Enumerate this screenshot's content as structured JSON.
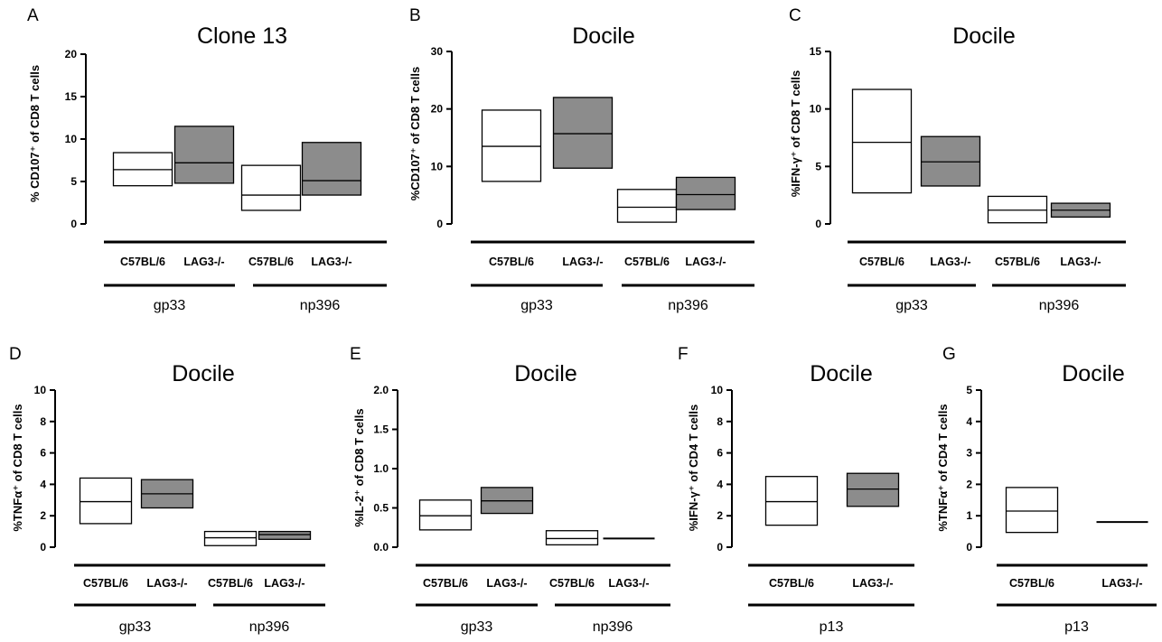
{
  "figure": {
    "colors": {
      "fill_white": "#ffffff",
      "fill_grey": "#8c8c8c",
      "stroke": "#000000"
    }
  },
  "chart_data": [
    {
      "type": "box",
      "panel": "A",
      "title": "Clone 13",
      "ylabel": "% CD107⁺ of CD8 T cells",
      "ylim": [
        0,
        20
      ],
      "yticks": [
        "0",
        "5",
        "10",
        "15",
        "20"
      ],
      "categories": [
        "C57BL/6",
        "LAG3-/-",
        "C57BL/6",
        "LAG3-/-"
      ],
      "groups": [
        {
          "label": "gp33",
          "members": [
            0,
            1
          ]
        },
        {
          "label": "np396",
          "members": [
            2,
            3
          ]
        }
      ],
      "boxes": [
        {
          "low": 4.5,
          "mid": 6.4,
          "high": 8.4,
          "fill": "white"
        },
        {
          "low": 4.8,
          "mid": 7.2,
          "high": 11.5,
          "fill": "grey"
        },
        {
          "low": 1.6,
          "mid": 3.4,
          "high": 6.9,
          "fill": "white"
        },
        {
          "low": 3.4,
          "mid": 5.1,
          "high": 9.6,
          "fill": "grey"
        }
      ]
    },
    {
      "type": "box",
      "panel": "B",
      "title": "Docile",
      "ylabel": "%CD107⁺ of CD8 T cells",
      "ylim": [
        0,
        30
      ],
      "yticks": [
        "0",
        "10",
        "20",
        "30"
      ],
      "categories": [
        "C57BL/6",
        "LAG3-/-",
        "C57BL/6",
        "LAG3-/-"
      ],
      "groups": [
        {
          "label": "gp33",
          "members": [
            0,
            1
          ]
        },
        {
          "label": "np396",
          "members": [
            2,
            3
          ]
        }
      ],
      "boxes": [
        {
          "low": 7.4,
          "mid": 13.5,
          "high": 19.8,
          "fill": "white"
        },
        {
          "low": 9.7,
          "mid": 15.7,
          "high": 22.0,
          "fill": "grey"
        },
        {
          "low": 0.3,
          "mid": 2.9,
          "high": 6.0,
          "fill": "white"
        },
        {
          "low": 2.5,
          "mid": 5.1,
          "high": 8.1,
          "fill": "grey"
        }
      ]
    },
    {
      "type": "box",
      "panel": "C",
      "title": "Docile",
      "ylabel": "%IFN-γ⁺ of CD8 T cells",
      "ylim": [
        0,
        15
      ],
      "yticks": [
        "0",
        "5",
        "10",
        "15"
      ],
      "categories": [
        "C57BL/6",
        "LAG3-/-",
        "C57BL/6",
        "LAG3-/-"
      ],
      "groups": [
        {
          "label": "gp33",
          "members": [
            0,
            1
          ]
        },
        {
          "label": "np396",
          "members": [
            2,
            3
          ]
        }
      ],
      "boxes": [
        {
          "low": 2.7,
          "mid": 7.1,
          "high": 11.7,
          "fill": "white"
        },
        {
          "low": 3.3,
          "mid": 5.4,
          "high": 7.6,
          "fill": "grey"
        },
        {
          "low": 0.1,
          "mid": 1.2,
          "high": 2.4,
          "fill": "white"
        },
        {
          "low": 0.6,
          "mid": 1.2,
          "high": 1.8,
          "fill": "grey"
        }
      ]
    },
    {
      "type": "box",
      "panel": "D",
      "title": "Docile",
      "ylabel": "%TNFα⁺ of CD8 T cells",
      "ylim": [
        0,
        10
      ],
      "yticks": [
        "0",
        "2",
        "4",
        "6",
        "8",
        "10"
      ],
      "categories": [
        "C57BL/6",
        "LAG3-/-",
        "C57BL/6",
        "LAG3-/-"
      ],
      "groups": [
        {
          "label": "gp33",
          "members": [
            0,
            1
          ]
        },
        {
          "label": "np396",
          "members": [
            2,
            3
          ]
        }
      ],
      "boxes": [
        {
          "low": 1.5,
          "mid": 2.9,
          "high": 4.4,
          "fill": "white"
        },
        {
          "low": 2.5,
          "mid": 3.4,
          "high": 4.3,
          "fill": "grey"
        },
        {
          "low": 0.1,
          "mid": 0.6,
          "high": 1.0,
          "fill": "white"
        },
        {
          "low": 0.5,
          "mid": 0.8,
          "high": 1.0,
          "fill": "grey"
        }
      ]
    },
    {
      "type": "box",
      "panel": "E",
      "title": "Docile",
      "ylabel": "%IL-2⁺ of CD8 T cells",
      "ylim": [
        0,
        2.0
      ],
      "yticks": [
        "0.0",
        "0.5",
        "1.0",
        "1.5",
        "2.0"
      ],
      "categories": [
        "C57BL/6",
        "LAG3-/-",
        "C57BL/6",
        "LAG3-/-"
      ],
      "groups": [
        {
          "label": "gp33",
          "members": [
            0,
            1
          ]
        },
        {
          "label": "np396",
          "members": [
            2,
            3
          ]
        }
      ],
      "boxes": [
        {
          "low": 0.22,
          "mid": 0.4,
          "high": 0.6,
          "fill": "white"
        },
        {
          "low": 0.43,
          "mid": 0.59,
          "high": 0.76,
          "fill": "grey"
        },
        {
          "low": 0.03,
          "mid": 0.11,
          "high": 0.21,
          "fill": "white"
        },
        {
          "low": 0.11,
          "mid": 0.11,
          "high": 0.11,
          "fill": "grey"
        }
      ]
    },
    {
      "type": "box",
      "panel": "F",
      "title": "Docile",
      "ylabel": "%IFN-γ⁺ of CD4 T cells",
      "ylim": [
        0,
        10
      ],
      "yticks": [
        "0",
        "2",
        "4",
        "6",
        "8",
        "10"
      ],
      "categories": [
        "C57BL/6",
        "LAG3-/-"
      ],
      "groups": [
        {
          "label": "p13",
          "members": [
            0,
            1
          ]
        }
      ],
      "boxes": [
        {
          "low": 1.4,
          "mid": 2.9,
          "high": 4.5,
          "fill": "white"
        },
        {
          "low": 2.6,
          "mid": 3.7,
          "high": 4.7,
          "fill": "grey"
        }
      ]
    },
    {
      "type": "box",
      "panel": "G",
      "title": "Docile",
      "ylabel": "%TNFα⁺ of CD4 T cells",
      "ylim": [
        0,
        5
      ],
      "yticks": [
        "0",
        "1",
        "2",
        "3",
        "4",
        "5"
      ],
      "categories": [
        "C57BL/6",
        "LAG3-/-"
      ],
      "groups": [
        {
          "label": "p13",
          "members": [
            0,
            1
          ]
        }
      ],
      "boxes": [
        {
          "low": 0.47,
          "mid": 1.15,
          "high": 1.9,
          "fill": "white"
        },
        {
          "low": 0.8,
          "mid": 0.8,
          "high": 0.8,
          "fill": "grey"
        }
      ]
    }
  ]
}
